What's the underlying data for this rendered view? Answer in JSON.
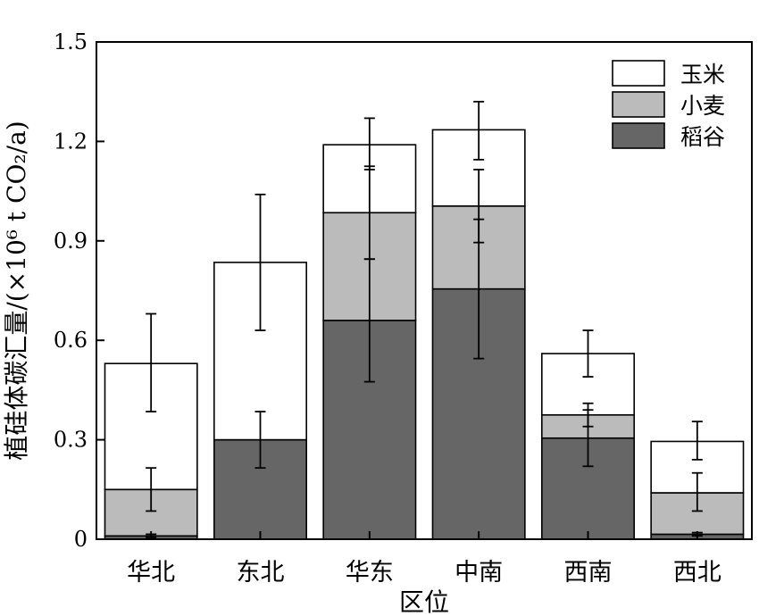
{
  "chart_data": {
    "type": "bar",
    "stacked": true,
    "title": "",
    "xlabel": "区位",
    "ylabel": "植硅体碳汇量/(×10⁶ t CO₂/a)",
    "ylim": [
      0,
      1.5
    ],
    "yticks": [
      0,
      0.3,
      0.6,
      0.9,
      1.2,
      1.5
    ],
    "ytick_labels": [
      "0",
      "0.3",
      "0.6",
      "0.9",
      "1.2",
      "1.5"
    ],
    "categories": [
      "华北",
      "东北",
      "华东",
      "中南",
      "西南",
      "西北"
    ],
    "grid": false,
    "legend_position": "top-right",
    "series": [
      {
        "name": "稻谷",
        "color": "#666666",
        "values": [
          0.01,
          0.3,
          0.66,
          0.755,
          0.305,
          0.015
        ],
        "error_low": [
          0.005,
          0.215,
          0.475,
          0.545,
          0.22,
          0.01
        ],
        "error_high": [
          0.015,
          0.385,
          0.845,
          0.965,
          0.39,
          0.02
        ]
      },
      {
        "name": "小麦",
        "color": "#bbbbbb",
        "values": [
          0.14,
          0.0,
          0.325,
          0.25,
          0.07,
          0.125
        ],
        "error_low": [
          0.085,
          null,
          0.845,
          0.895,
          0.34,
          0.085
        ],
        "error_high": [
          0.215,
          null,
          1.125,
          1.115,
          0.41,
          0.2
        ]
      },
      {
        "name": "玉米",
        "color": "#ffffff",
        "values": [
          0.38,
          0.535,
          0.205,
          0.23,
          0.185,
          0.155
        ],
        "error_low": [
          0.385,
          0.63,
          1.115,
          1.145,
          0.49,
          0.24
        ],
        "error_high": [
          0.68,
          1.04,
          1.27,
          1.32,
          0.63,
          0.355
        ]
      }
    ],
    "legend_order": [
      "玉米",
      "小麦",
      "稻谷"
    ]
  }
}
